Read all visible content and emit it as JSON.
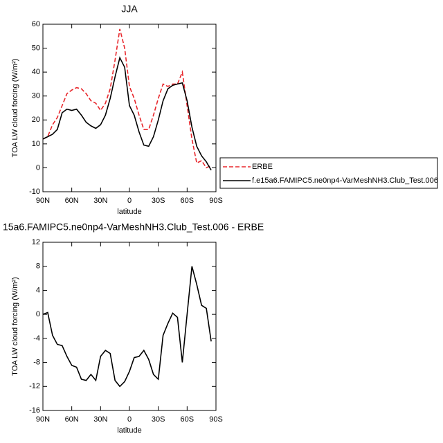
{
  "chart_data": [
    {
      "type": "line",
      "title": "JJA",
      "xlabel": "latitude",
      "ylabel": "TOA LW cloud forcing (W/m²)",
      "x": [
        90,
        85,
        80,
        75,
        70,
        65,
        60,
        55,
        50,
        45,
        40,
        35,
        30,
        25,
        20,
        15,
        10,
        5,
        0,
        -5,
        -10,
        -15,
        -20,
        -25,
        -30,
        -35,
        -40,
        -45,
        -50,
        -55,
        -60,
        -65,
        -70,
        -75,
        -80,
        -85,
        -90
      ],
      "series": [
        {
          "name": "ERBE",
          "color": "#e8262b",
          "line_style": "dashed",
          "values": [
            12,
            13,
            18,
            21,
            26,
            31,
            32.5,
            33.5,
            33,
            31,
            28,
            27,
            24,
            27,
            33,
            45,
            58,
            50,
            34,
            29,
            22,
            16,
            16,
            22,
            29,
            35,
            34,
            35,
            35,
            40,
            26,
            12,
            2,
            3,
            0,
            1,
            null
          ]
        },
        {
          "name": "f.e15a6.FAMIPC5.ne0np4-VarMeshNH3.Club_Test.006",
          "color": "#000000",
          "line_style": "solid",
          "values": [
            12,
            13,
            14,
            16,
            23,
            24.5,
            24,
            24.5,
            22,
            19,
            17.5,
            16.5,
            18,
            22,
            29,
            38,
            46,
            42,
            26,
            22,
            15,
            9.5,
            9,
            13,
            20,
            28,
            33,
            34.5,
            35,
            35.5,
            28,
            17,
            9,
            5,
            2.5,
            -1,
            null
          ]
        }
      ],
      "xlim": [
        90,
        -90
      ],
      "xticks": [
        {
          "value": 90,
          "label": "90N"
        },
        {
          "value": 60,
          "label": "60N"
        },
        {
          "value": 30,
          "label": "30N"
        },
        0,
        {
          "value": -30,
          "label": "30S"
        },
        {
          "value": -60,
          "label": "60S"
        },
        {
          "value": -90,
          "label": "90S"
        }
      ],
      "ylim": [
        -10,
        60
      ],
      "yticks": [
        -10,
        0,
        10,
        20,
        30,
        40,
        50,
        60
      ],
      "legend": "right"
    },
    {
      "type": "line",
      "title": "15a6.FAMIPC5.ne0np4-VarMeshNH3.Club_Test.006 - ERBE",
      "xlabel": "latitude",
      "ylabel": "TOA LW cloud forcing (W/m²)",
      "x": [
        90,
        85,
        80,
        75,
        70,
        65,
        60,
        55,
        50,
        45,
        40,
        35,
        30,
        25,
        20,
        15,
        10,
        5,
        0,
        -5,
        -10,
        -15,
        -20,
        -25,
        -30,
        -35,
        -40,
        -45,
        -50,
        -55,
        -60,
        -65,
        -70,
        -75,
        -80,
        -85,
        -90
      ],
      "series": [
        {
          "color": "#000000",
          "line_style": "solid",
          "values": [
            0,
            0.3,
            -3.5,
            -5,
            -5.2,
            -7,
            -8.5,
            -8.8,
            -10.8,
            -11,
            -10,
            -11,
            -7,
            -6,
            -6.5,
            -11,
            -12,
            -11.2,
            -9.5,
            -7.2,
            -7,
            -6,
            -7.5,
            -10,
            -10.8,
            -3.5,
            -1.5,
            0.2,
            -0.5,
            -8,
            0,
            8,
            5,
            1.5,
            1,
            -4.5,
            null
          ]
        }
      ],
      "xlim": [
        90,
        -90
      ],
      "xticks": [
        {
          "value": 90,
          "label": "90N"
        },
        {
          "value": 60,
          "label": "60N"
        },
        {
          "value": 30,
          "label": "30N"
        },
        0,
        {
          "value": -30,
          "label": "30S"
        },
        {
          "value": -60,
          "label": "60S"
        },
        {
          "value": -90,
          "label": "90S"
        }
      ],
      "ylim": [
        -16,
        12
      ],
      "yticks": [
        -16,
        -12,
        -8,
        -4,
        0,
        4,
        8,
        12
      ]
    }
  ]
}
